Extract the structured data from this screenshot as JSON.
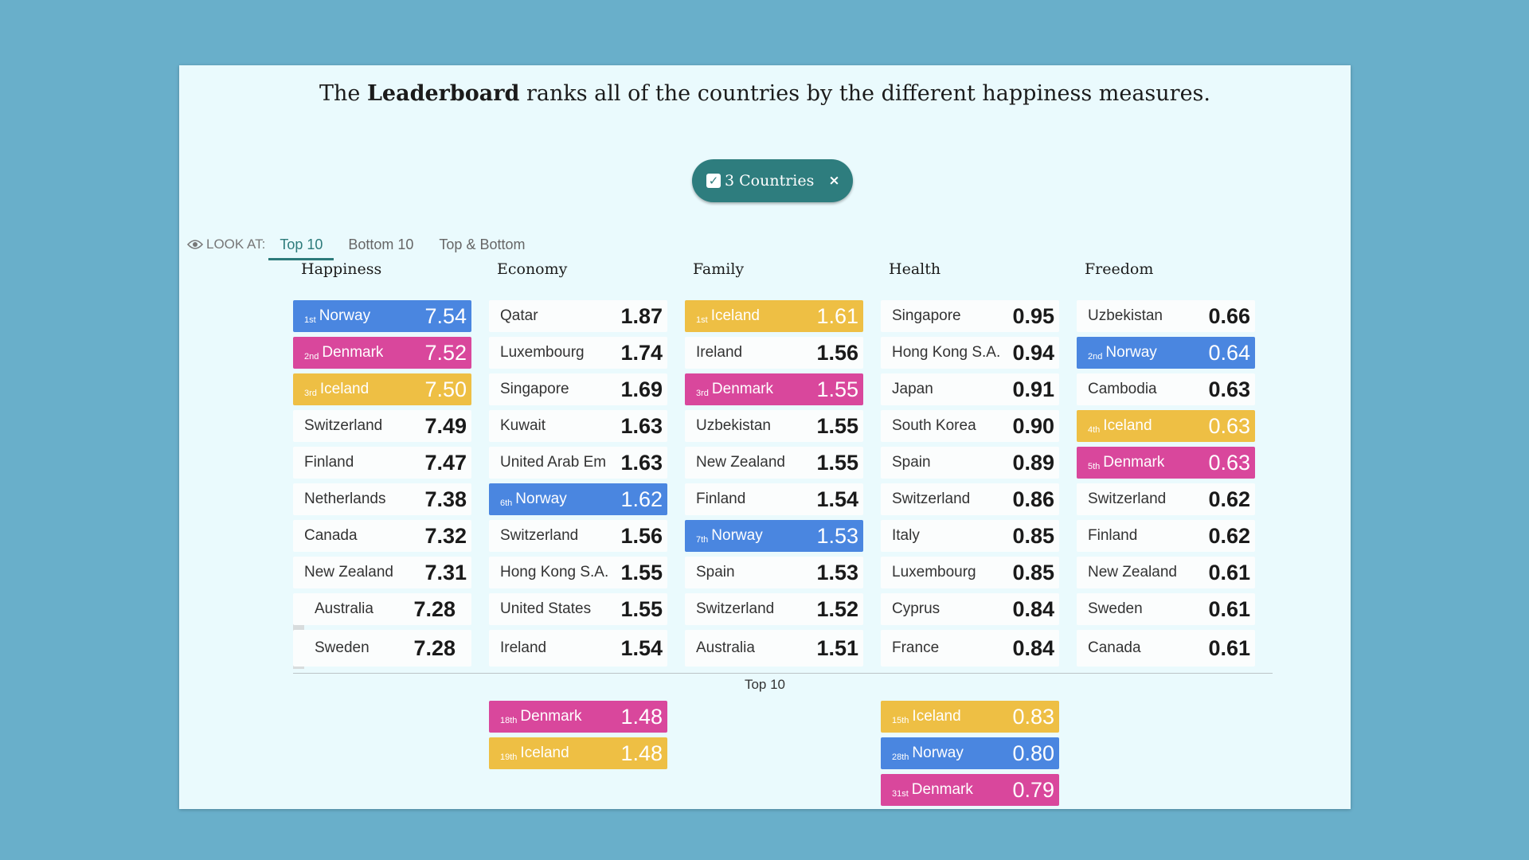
{
  "intro": {
    "pre": "The ",
    "bold": "Leaderboard",
    "post": " ranks all of the countries by the different happiness measures."
  },
  "filter": {
    "label": "3 Countries",
    "close": "×"
  },
  "lookbar": {
    "label": "LOOK AT:",
    "tabs": [
      "Top 10",
      "Bottom 10",
      "Top & Bottom"
    ],
    "active": "Top 10"
  },
  "colors": {
    "Norway": "#4a86e0",
    "Denmark": "#d9479c",
    "Iceland": "#eebf44",
    "accent": "#2e7d7e"
  },
  "columns": [
    {
      "title": "Happiness",
      "rows": [
        {
          "rank": "1st",
          "name": "Norway",
          "value": "7.54",
          "hl": "Norway"
        },
        {
          "rank": "2nd",
          "name": "Denmark",
          "value": "7.52",
          "hl": "Denmark"
        },
        {
          "rank": "3rd",
          "name": "Iceland",
          "value": "7.50",
          "hl": "Iceland"
        },
        {
          "rank": "",
          "name": "Switzerland",
          "value": "7.49"
        },
        {
          "rank": "",
          "name": "Finland",
          "value": "7.47"
        },
        {
          "rank": "",
          "name": "Netherlands",
          "value": "7.38"
        },
        {
          "rank": "",
          "name": "Canada",
          "value": "7.32"
        },
        {
          "rank": "",
          "name": "New Zealand",
          "value": "7.31"
        },
        {
          "rank": "",
          "name": "Australia",
          "value": "7.28"
        },
        {
          "rank": "",
          "name": "Sweden",
          "value": "7.28"
        }
      ]
    },
    {
      "title": "Economy",
      "rows": [
        {
          "rank": "",
          "name": "Qatar",
          "value": "1.87"
        },
        {
          "rank": "",
          "name": "Luxembourg",
          "value": "1.74"
        },
        {
          "rank": "",
          "name": "Singapore",
          "value": "1.69"
        },
        {
          "rank": "",
          "name": "Kuwait",
          "value": "1.63"
        },
        {
          "rank": "",
          "name": "United Arab Em",
          "value": "1.63"
        },
        {
          "rank": "6th",
          "name": "Norway",
          "value": "1.62",
          "hl": "Norway"
        },
        {
          "rank": "",
          "name": "Switzerland",
          "value": "1.56"
        },
        {
          "rank": "",
          "name": "Hong Kong S.A.",
          "value": "1.55"
        },
        {
          "rank": "",
          "name": "United States",
          "value": "1.55"
        },
        {
          "rank": "",
          "name": "Ireland",
          "value": "1.54"
        }
      ]
    },
    {
      "title": "Family",
      "rows": [
        {
          "rank": "1st",
          "name": "Iceland",
          "value": "1.61",
          "hl": "Iceland"
        },
        {
          "rank": "",
          "name": "Ireland",
          "value": "1.56"
        },
        {
          "rank": "3rd",
          "name": "Denmark",
          "value": "1.55",
          "hl": "Denmark"
        },
        {
          "rank": "",
          "name": "Uzbekistan",
          "value": "1.55"
        },
        {
          "rank": "",
          "name": "New Zealand",
          "value": "1.55"
        },
        {
          "rank": "",
          "name": "Finland",
          "value": "1.54"
        },
        {
          "rank": "7th",
          "name": "Norway",
          "value": "1.53",
          "hl": "Norway"
        },
        {
          "rank": "",
          "name": "Spain",
          "value": "1.53"
        },
        {
          "rank": "",
          "name": "Switzerland",
          "value": "1.52"
        },
        {
          "rank": "",
          "name": "Australia",
          "value": "1.51"
        }
      ]
    },
    {
      "title": "Health",
      "rows": [
        {
          "rank": "",
          "name": "Singapore",
          "value": "0.95"
        },
        {
          "rank": "",
          "name": "Hong Kong S.A.",
          "value": "0.94"
        },
        {
          "rank": "",
          "name": "Japan",
          "value": "0.91"
        },
        {
          "rank": "",
          "name": "South Korea",
          "value": "0.90"
        },
        {
          "rank": "",
          "name": "Spain",
          "value": "0.89"
        },
        {
          "rank": "",
          "name": "Switzerland",
          "value": "0.86"
        },
        {
          "rank": "",
          "name": "Italy",
          "value": "0.85"
        },
        {
          "rank": "",
          "name": "Luxembourg",
          "value": "0.85"
        },
        {
          "rank": "",
          "name": "Cyprus",
          "value": "0.84"
        },
        {
          "rank": "",
          "name": "France",
          "value": "0.84"
        }
      ]
    },
    {
      "title": "Freedom",
      "rows": [
        {
          "rank": "",
          "name": "Uzbekistan",
          "value": "0.66"
        },
        {
          "rank": "2nd",
          "name": "Norway",
          "value": "0.64",
          "hl": "Norway"
        },
        {
          "rank": "",
          "name": "Cambodia",
          "value": "0.63"
        },
        {
          "rank": "4th",
          "name": "Iceland",
          "value": "0.63",
          "hl": "Iceland"
        },
        {
          "rank": "5th",
          "name": "Denmark",
          "value": "0.63",
          "hl": "Denmark"
        },
        {
          "rank": "",
          "name": "Switzerland",
          "value": "0.62"
        },
        {
          "rank": "",
          "name": "Finland",
          "value": "0.62"
        },
        {
          "rank": "",
          "name": "New Zealand",
          "value": "0.61"
        },
        {
          "rank": "",
          "name": "Sweden",
          "value": "0.61"
        },
        {
          "rank": "",
          "name": "Canada",
          "value": "0.61"
        }
      ]
    }
  ],
  "section_label": "Top 10",
  "extras": [
    {
      "col": 1,
      "rows": [
        {
          "rank": "18th",
          "name": "Denmark",
          "value": "1.48",
          "hl": "Denmark"
        },
        {
          "rank": "19th",
          "name": "Iceland",
          "value": "1.48",
          "hl": "Iceland"
        }
      ]
    },
    {
      "col": 3,
      "rows": [
        {
          "rank": "15th",
          "name": "Iceland",
          "value": "0.83",
          "hl": "Iceland"
        },
        {
          "rank": "28th",
          "name": "Norway",
          "value": "0.80",
          "hl": "Norway"
        },
        {
          "rank": "31st",
          "name": "Denmark",
          "value": "0.79",
          "hl": "Denmark"
        }
      ]
    }
  ]
}
